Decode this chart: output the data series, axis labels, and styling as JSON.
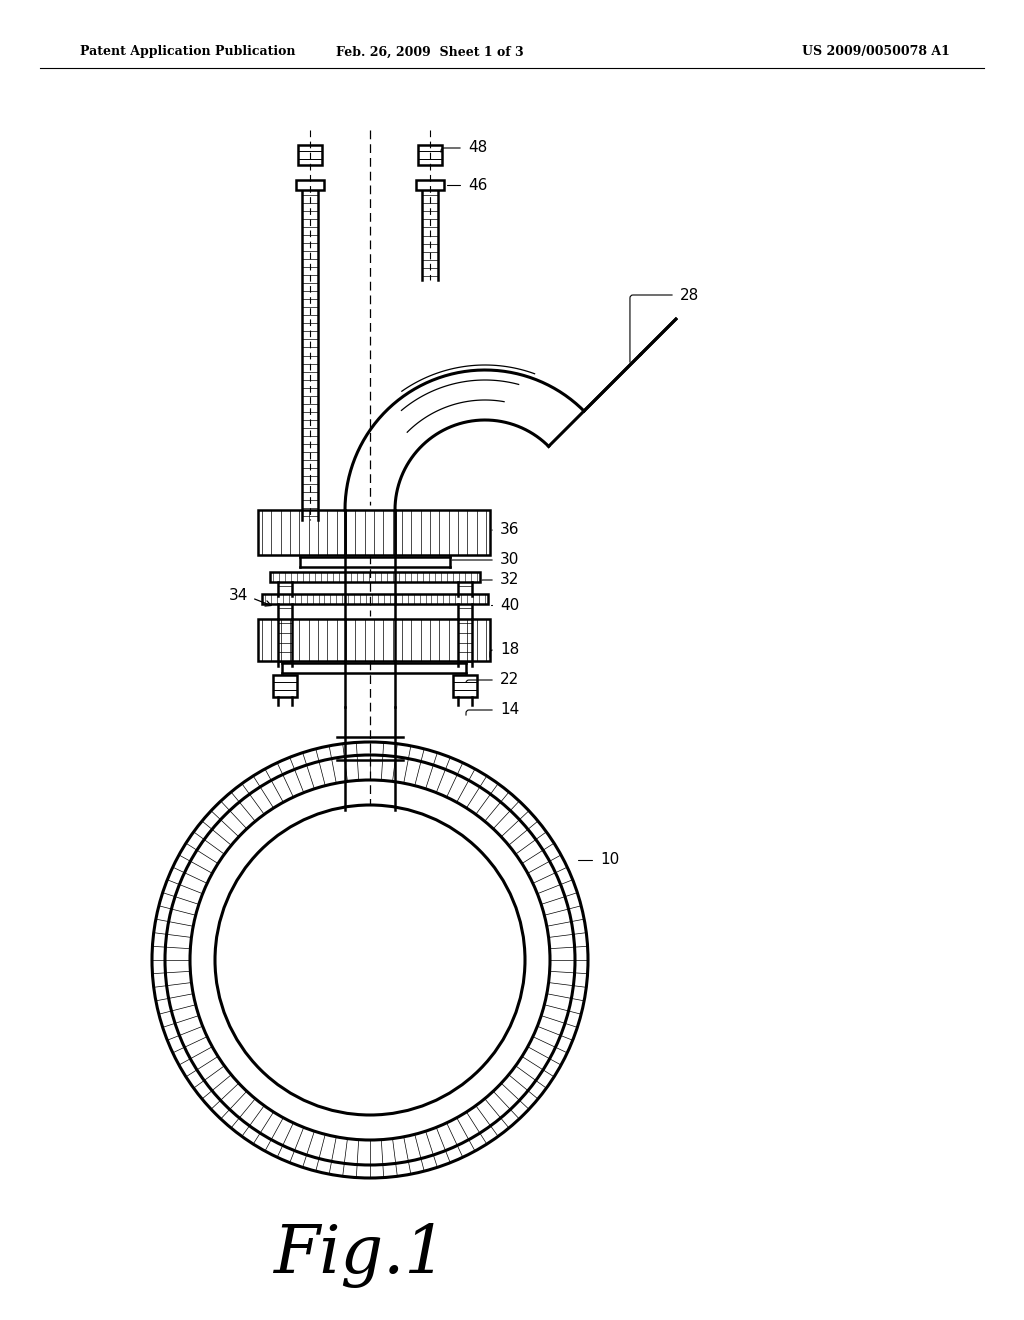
{
  "bg_color": "#ffffff",
  "line_color": "#000000",
  "header_left": "Patent Application Publication",
  "header_mid": "Feb. 26, 2009  Sheet 1 of 3",
  "header_right": "US 2009/0050078 A1",
  "fig_label": "Fig.1"
}
